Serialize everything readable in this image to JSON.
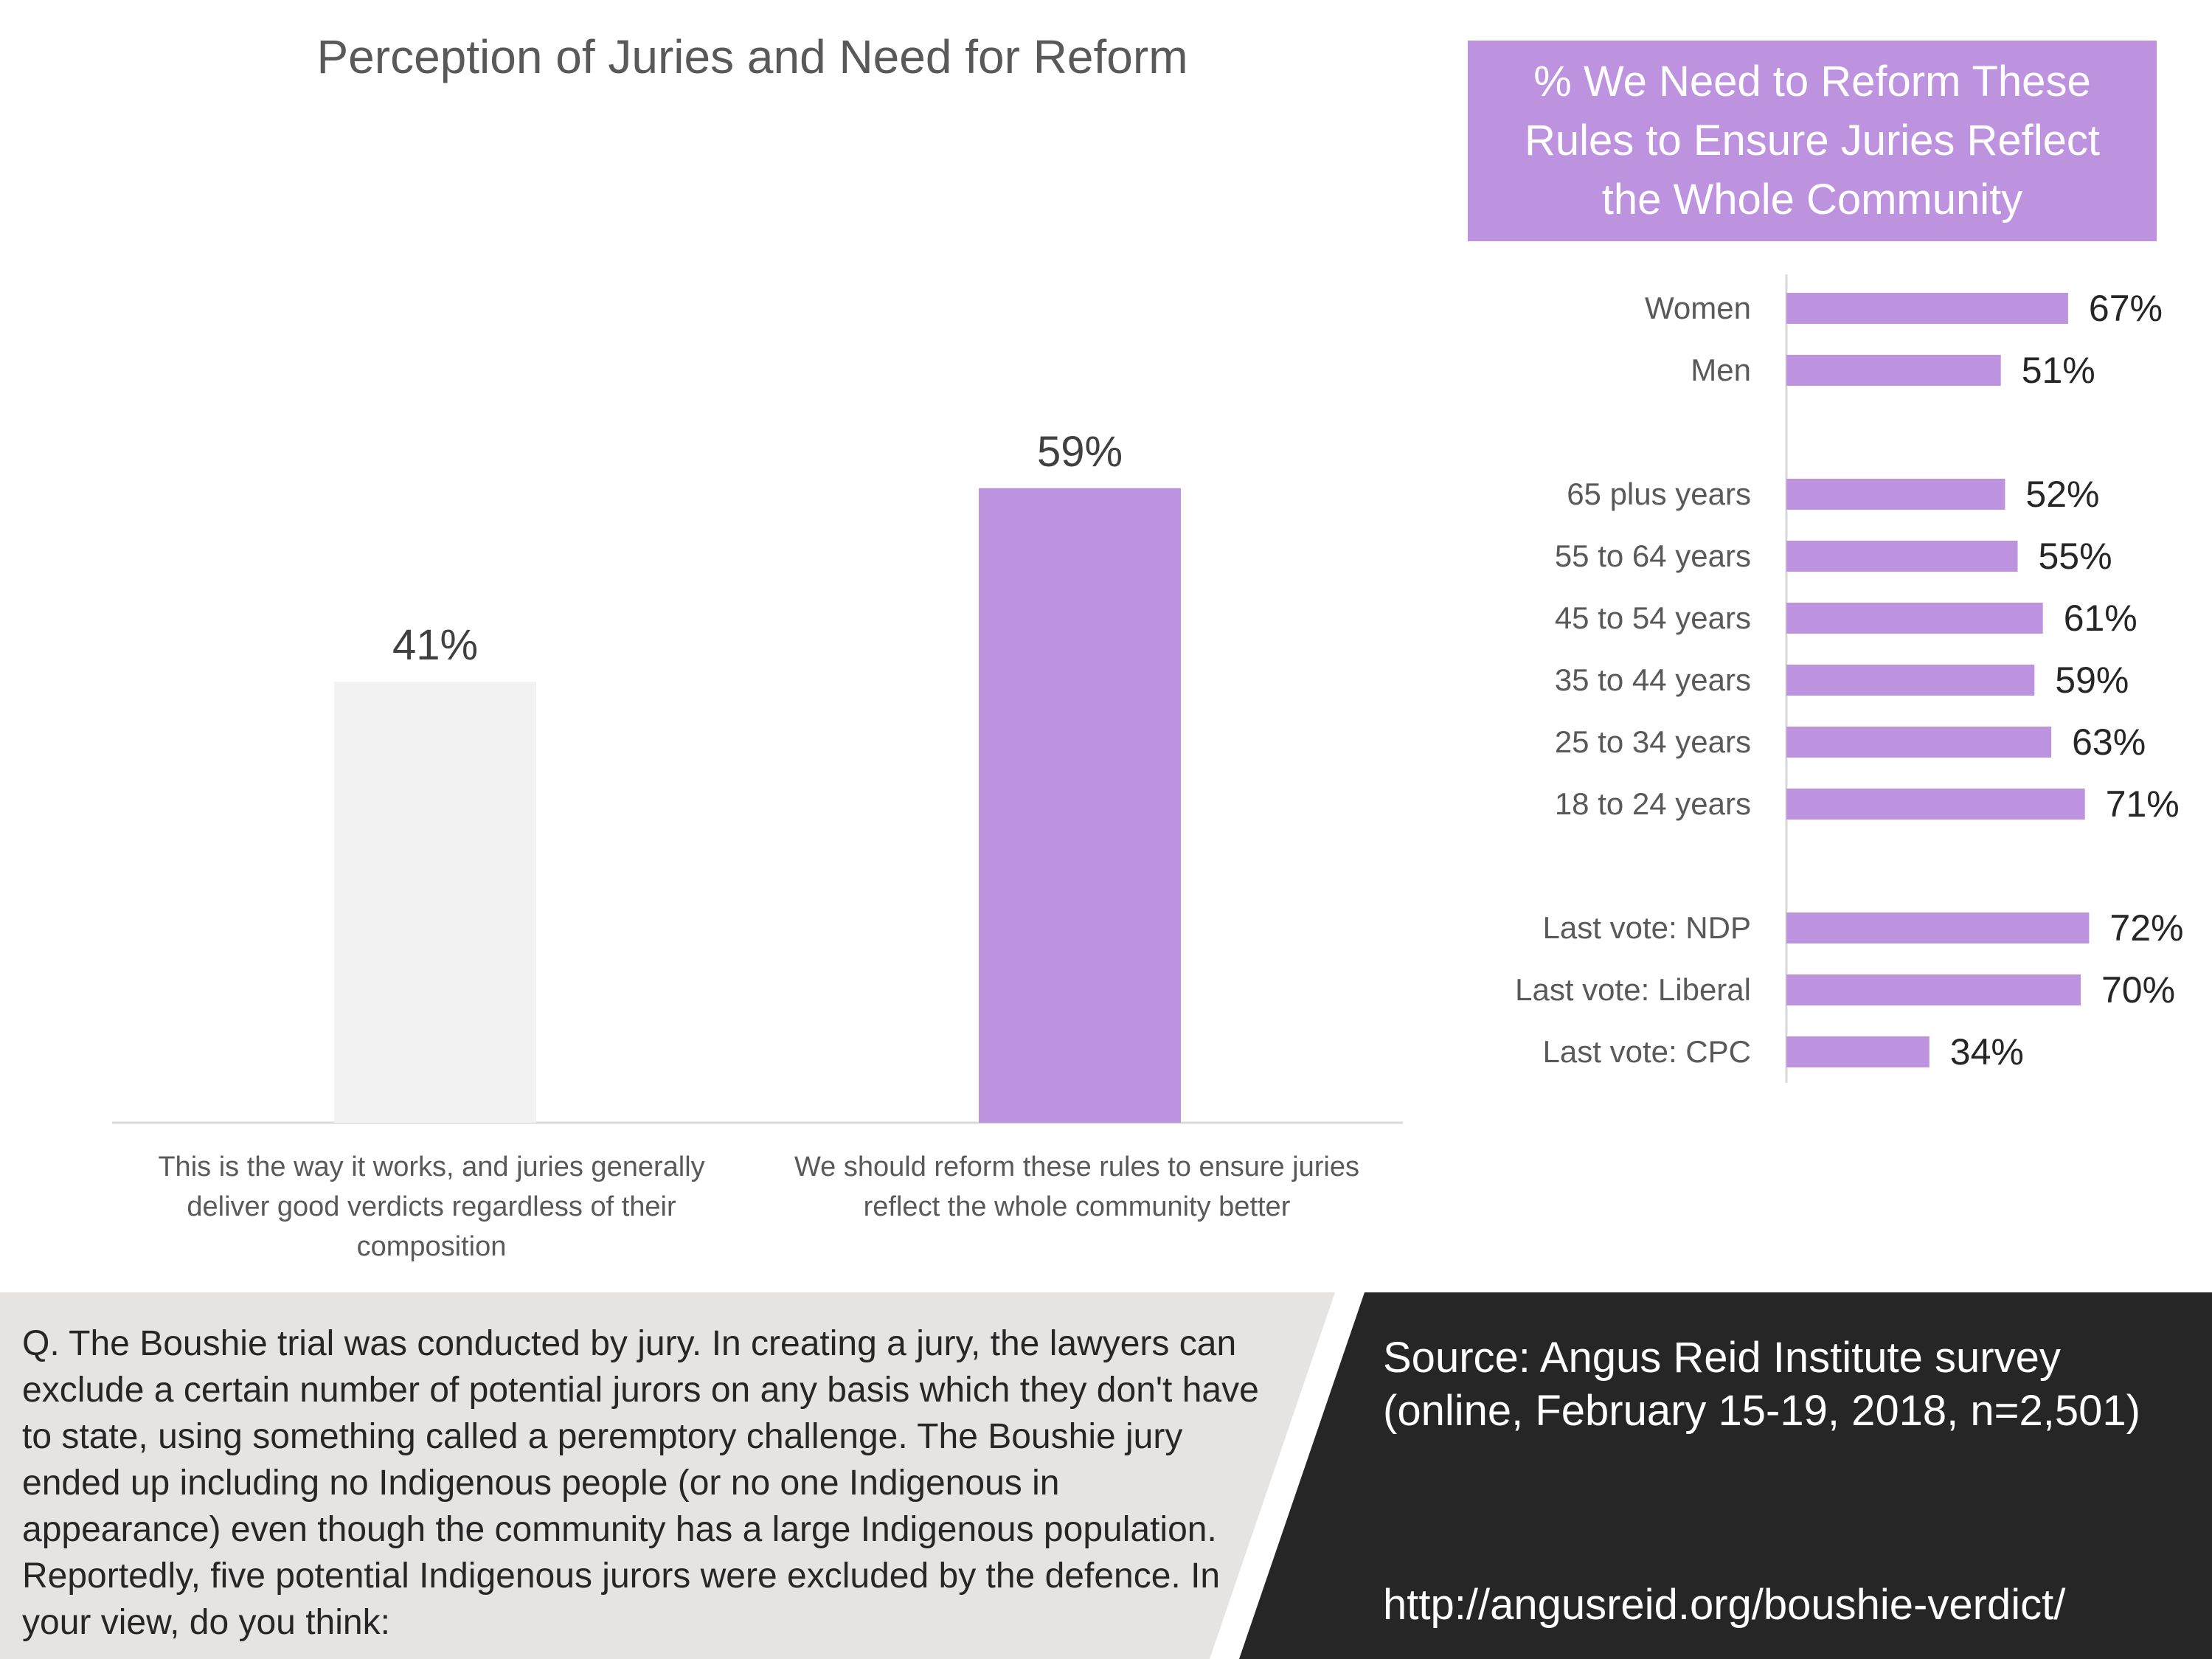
{
  "chart_data": [
    {
      "type": "bar",
      "title": "Perception of Juries and Need for Reform",
      "categories": [
        "This is the way it works, and juries generally deliver good verdicts regardless of their composition",
        "We should reform these rules to ensure juries reflect the whole community better"
      ],
      "values": [
        41,
        59
      ],
      "data_labels": [
        "41%",
        "59%"
      ],
      "colors": [
        "#f2f2f2",
        "#bd92de"
      ],
      "ylim": [
        0,
        100
      ],
      "grid": false
    },
    {
      "type": "bar",
      "orientation": "horizontal",
      "title": "% We Need to Reform These Rules to Ensure Juries Reflect the Whole Community",
      "categories": [
        "Women",
        "Men",
        "65 plus years",
        "55 to 64 years",
        "45 to 54 years",
        "35 to 44 years",
        "25 to 34 years",
        "18 to 24 years",
        "Last vote: NDP",
        "Last vote: Liberal",
        "Last vote: CPC"
      ],
      "values": [
        67,
        51,
        52,
        55,
        61,
        59,
        63,
        71,
        72,
        70,
        34
      ],
      "data_labels": [
        "67%",
        "51%",
        "52%",
        "55%",
        "61%",
        "59%",
        "63%",
        "71%",
        "72%",
        "70%",
        "34%"
      ],
      "groups": [
        [
          "Women",
          "Men"
        ],
        [
          "65 plus years",
          "55 to 64 years",
          "45 to 54 years",
          "35 to 44 years",
          "25 to 34 years",
          "18 to 24 years"
        ],
        [
          "Last vote: NDP",
          "Last vote: Liberal",
          "Last vote: CPC"
        ]
      ],
      "color": "#bd92de",
      "xlim": [
        0,
        100
      ],
      "grid": false
    }
  ],
  "footer": {
    "question": "Q.   The Boushie trial was conducted by jury. In creating a jury, the lawyers can exclude a certain number of potential jurors on any basis which they don't have to state, using something called a peremptory challenge. The Boushie jury ended up including no Indigenous people (or no one Indigenous in appearance) even though the community has a large Indigenous population. Reportedly, five potential Indigenous jurors were excluded by the defence. In your view, do you think:",
    "source": "Source: Angus Reid Institute survey (online, February 15-19, 2018, n=2,501)",
    "url": "http://angusreid.org/boushie-verdict/"
  },
  "colors": {
    "accent": "#bd92de",
    "light_bar": "#f2f2f2",
    "dark_panel": "#262626",
    "grey_panel": "#e6e3e3"
  }
}
